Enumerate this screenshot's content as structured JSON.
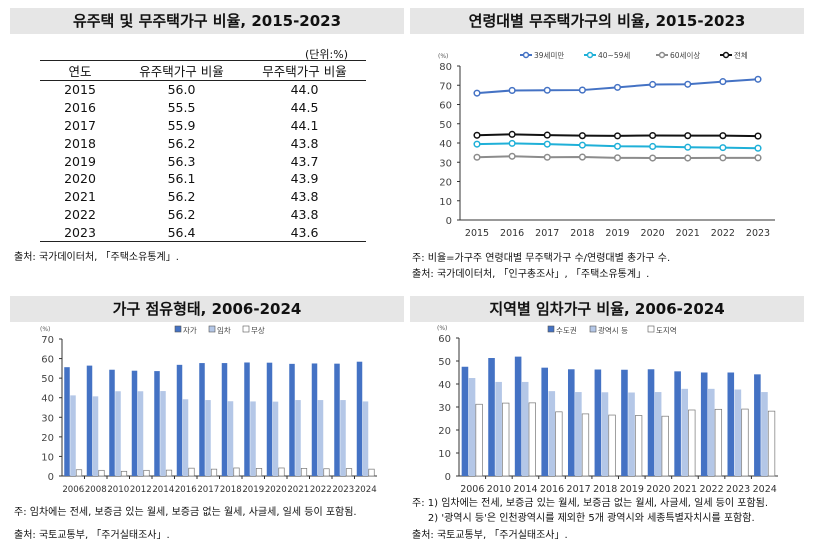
{
  "table_panel": {
    "title": "유주택 및 무주택가구 비율, 2015-2023",
    "unit": "(단위:%)",
    "headers": [
      "연도",
      "유주택가구 비율",
      "무주택가구 비율"
    ],
    "rows": [
      [
        "2015",
        "56.0",
        "44.0"
      ],
      [
        "2016",
        "55.5",
        "44.5"
      ],
      [
        "2017",
        "55.9",
        "44.1"
      ],
      [
        "2018",
        "56.2",
        "43.8"
      ],
      [
        "2019",
        "56.3",
        "43.7"
      ],
      [
        "2020",
        "56.1",
        "43.9"
      ],
      [
        "2021",
        "56.2",
        "43.8"
      ],
      [
        "2022",
        "56.2",
        "43.8"
      ],
      [
        "2023",
        "56.4",
        "43.6"
      ]
    ],
    "source": "출처: 국가데이터처, 「주택소유통계」."
  },
  "chart_data": [
    {
      "type": "line",
      "title": "연령대별 무주택가구의 비율, 2015-2023",
      "ylabel": "(%)",
      "ylim": [
        0,
        80
      ],
      "yticks": [
        0,
        10,
        20,
        30,
        40,
        50,
        60,
        70,
        80
      ],
      "grid": false,
      "legend": "top",
      "categories": [
        "2015",
        "2016",
        "2017",
        "2018",
        "2019",
        "2020",
        "2021",
        "2022",
        "2023"
      ],
      "series": [
        {
          "name": "39세미만",
          "color": "#4472c4",
          "values": [
            65.9,
            67.3,
            67.4,
            67.5,
            68.9,
            70.4,
            70.5,
            71.9,
            73.1
          ]
        },
        {
          "name": "40~59세",
          "color": "#1fb0d8",
          "values": [
            39.4,
            39.8,
            39.4,
            38.9,
            38.3,
            38.2,
            37.8,
            37.6,
            37.3
          ]
        },
        {
          "name": "60세이상",
          "color": "#8c8c8c",
          "values": [
            32.6,
            33.1,
            32.6,
            32.7,
            32.3,
            32.2,
            32.2,
            32.3,
            32.3
          ]
        },
        {
          "name": "전체",
          "color": "#111111",
          "values": [
            44.0,
            44.5,
            44.1,
            43.8,
            43.7,
            43.9,
            43.8,
            43.8,
            43.6
          ]
        }
      ],
      "notes": [
        "주: 비율=가구주 연령대별 무주택가구 수/연령대별 총가구 수.",
        "출처: 국가데이터처, 「인구총조사」, 「주택소유통계」."
      ]
    },
    {
      "type": "bar",
      "title": "가구 점유형태, 2006-2024",
      "ylabel": "(%)",
      "ylim": [
        0,
        70
      ],
      "yticks": [
        0,
        10,
        20,
        30,
        40,
        50,
        60,
        70
      ],
      "grid": false,
      "legend": "top",
      "categories": [
        "2006",
        "2008",
        "2010",
        "2012",
        "2014",
        "2016",
        "2017",
        "2018",
        "2019",
        "2020",
        "2021",
        "2022",
        "2023",
        "2024"
      ],
      "series": [
        {
          "name": "자가",
          "color": "#4472c4",
          "values": [
            55.6,
            56.4,
            54.3,
            53.8,
            53.6,
            56.8,
            57.7,
            57.7,
            58.0,
            57.9,
            57.3,
            57.5,
            57.4,
            58.4
          ]
        },
        {
          "name": "임차",
          "color": "#b4c7e7",
          "values": [
            41.2,
            40.7,
            43.3,
            43.3,
            43.4,
            39.2,
            38.8,
            38.2,
            38.1,
            38.0,
            38.8,
            38.8,
            38.8,
            38.1
          ]
        },
        {
          "name": "무상",
          "color": "#ffffff",
          "values": [
            3.2,
            2.9,
            2.4,
            2.9,
            3.0,
            4.0,
            3.5,
            4.1,
            3.9,
            4.1,
            3.9,
            3.7,
            3.8,
            3.5
          ]
        }
      ],
      "notes": [
        "주: 임차에는 전세, 보증금 있는 월세, 보증금 없는 월세, 사글세, 일세 등이 포함됨.",
        "출처: 국토교통부, 「주거실태조사」."
      ]
    },
    {
      "type": "bar",
      "title": "지역별 임차가구 비율, 2006-2024",
      "ylabel": "(%)",
      "ylim": [
        0,
        60
      ],
      "yticks": [
        0,
        10,
        20,
        30,
        40,
        50,
        60
      ],
      "grid": false,
      "legend": "top",
      "categories": [
        "2006",
        "2010",
        "2014",
        "2016",
        "2017",
        "2018",
        "2019",
        "2020",
        "2021",
        "2022",
        "2023",
        "2024"
      ],
      "series": [
        {
          "name": "수도권",
          "color": "#4472c4",
          "values": [
            47.5,
            51.3,
            51.9,
            47.1,
            46.4,
            46.3,
            46.2,
            46.4,
            45.5,
            45.0,
            45.0,
            44.2
          ]
        },
        {
          "name": "광역시 등",
          "color": "#b4c7e7",
          "values": [
            42.6,
            40.9,
            40.9,
            36.9,
            36.5,
            36.4,
            36.3,
            36.5,
            37.9,
            37.9,
            37.6,
            36.5
          ]
        },
        {
          "name": "도지역",
          "color": "#ffffff",
          "values": [
            31.2,
            31.7,
            31.8,
            27.9,
            27.0,
            26.5,
            26.3,
            26.0,
            28.7,
            29.0,
            29.1,
            28.2
          ]
        }
      ],
      "notes": [
        "주: 1) 임차에는 전세, 보증금 있는 월세, 보증금 없는 월세, 사글세, 일세 등이 포함됨.",
        "     2) '광역시 등'은 인천광역시를 제외한 5개 광역시와 세종특별자치시를 포함함.",
        "출처: 국토교통부, 「주거실태조사」."
      ]
    }
  ]
}
